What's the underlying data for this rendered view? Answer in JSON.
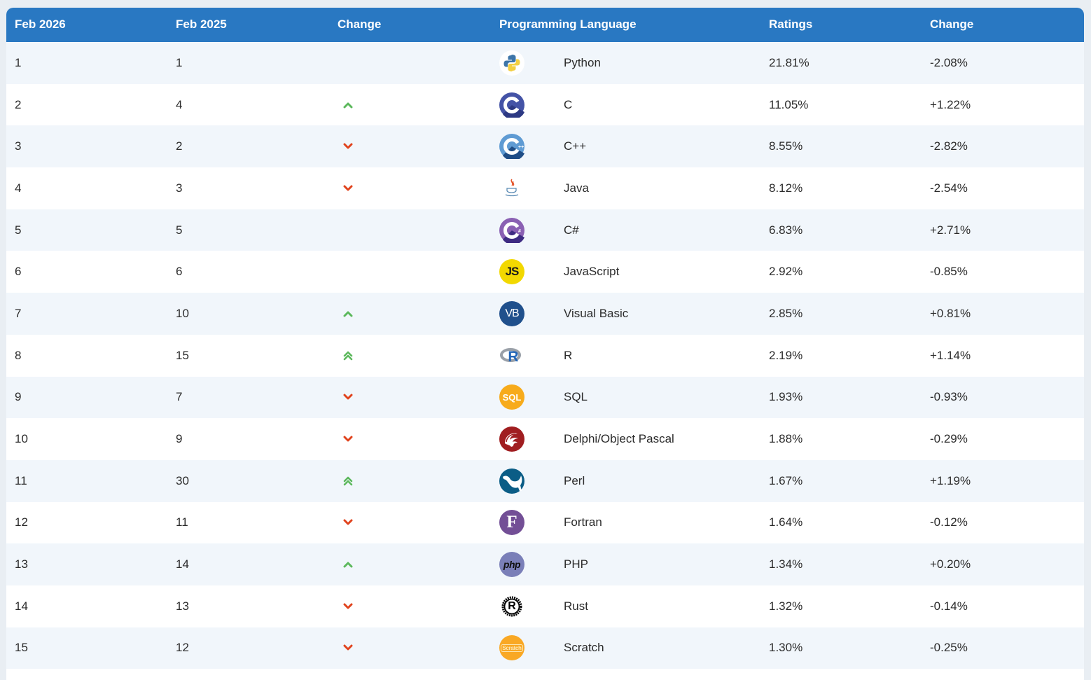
{
  "header": {
    "col_current": "Feb 2026",
    "col_previous": "Feb 2025",
    "col_change_rank": "Change",
    "col_language": "Programming Language",
    "col_ratings": "Ratings",
    "col_change": "Change"
  },
  "colors": {
    "header_bg": "#2978c2",
    "row_alt": "#f1f6fb",
    "up": "#5cb85c",
    "down": "#e0431d"
  },
  "rows": [
    {
      "rank": "1",
      "prev": "1",
      "trend": "none",
      "icon": "python-logo-icon",
      "language": "Python",
      "rating": "21.81%",
      "change": "-2.08%"
    },
    {
      "rank": "2",
      "prev": "4",
      "trend": "up",
      "icon": "c-logo-icon",
      "language": "C",
      "rating": "11.05%",
      "change": "+1.22%"
    },
    {
      "rank": "3",
      "prev": "2",
      "trend": "down",
      "icon": "cpp-logo-icon",
      "language": "C++",
      "rating": "8.55%",
      "change": "-2.82%"
    },
    {
      "rank": "4",
      "prev": "3",
      "trend": "down",
      "icon": "java-logo-icon",
      "language": "Java",
      "rating": "8.12%",
      "change": "-2.54%"
    },
    {
      "rank": "5",
      "prev": "5",
      "trend": "none",
      "icon": "csharp-logo-icon",
      "language": "C#",
      "rating": "6.83%",
      "change": "+2.71%"
    },
    {
      "rank": "6",
      "prev": "6",
      "trend": "none",
      "icon": "javascript-logo-icon",
      "language": "JavaScript",
      "rating": "2.92%",
      "change": "-0.85%"
    },
    {
      "rank": "7",
      "prev": "10",
      "trend": "up",
      "icon": "visual-basic-logo-icon",
      "language": "Visual Basic",
      "rating": "2.85%",
      "change": "+0.81%"
    },
    {
      "rank": "8",
      "prev": "15",
      "trend": "up2",
      "icon": "r-logo-icon",
      "language": "R",
      "rating": "2.19%",
      "change": "+1.14%"
    },
    {
      "rank": "9",
      "prev": "7",
      "trend": "down",
      "icon": "sql-logo-icon",
      "language": "SQL",
      "rating": "1.93%",
      "change": "-0.93%"
    },
    {
      "rank": "10",
      "prev": "9",
      "trend": "down",
      "icon": "delphi-logo-icon",
      "language": "Delphi/Object Pascal",
      "rating": "1.88%",
      "change": "-0.29%"
    },
    {
      "rank": "11",
      "prev": "30",
      "trend": "up2",
      "icon": "perl-logo-icon",
      "language": "Perl",
      "rating": "1.67%",
      "change": "+1.19%"
    },
    {
      "rank": "12",
      "prev": "11",
      "trend": "down",
      "icon": "fortran-logo-icon",
      "language": "Fortran",
      "rating": "1.64%",
      "change": "-0.12%"
    },
    {
      "rank": "13",
      "prev": "14",
      "trend": "up",
      "icon": "php-logo-icon",
      "language": "PHP",
      "rating": "1.34%",
      "change": "+0.20%"
    },
    {
      "rank": "14",
      "prev": "13",
      "trend": "down",
      "icon": "rust-logo-icon",
      "language": "Rust",
      "rating": "1.32%",
      "change": "-0.14%"
    },
    {
      "rank": "15",
      "prev": "12",
      "trend": "down",
      "icon": "scratch-logo-icon",
      "language": "Scratch",
      "rating": "1.30%",
      "change": "-0.25%"
    }
  ],
  "logo_text": {
    "javascript": "JS",
    "visual_basic": "VB",
    "r": "R",
    "sql": "SQL",
    "fortran": "F",
    "php": "php",
    "rust": "R",
    "scratch": "Scratch"
  }
}
